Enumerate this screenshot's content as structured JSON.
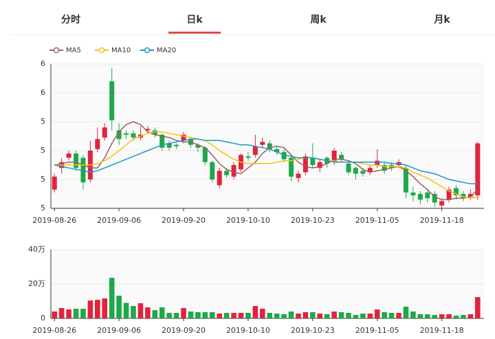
{
  "tabs": [
    "分时",
    "日k",
    "周k",
    "月k"
  ],
  "selected_tab": 1,
  "up_color": "#e2233e",
  "down_color": "#1fa84a",
  "chart_data": [
    {
      "type": "candlestick",
      "categories": [
        "2019-08-26",
        null,
        null,
        null,
        null,
        null,
        null,
        null,
        null,
        "2019-09-06",
        null,
        null,
        null,
        null,
        null,
        null,
        null,
        null,
        "2019-09-20",
        null,
        null,
        null,
        null,
        null,
        null,
        null,
        null,
        "2019-10-10",
        null,
        null,
        null,
        null,
        null,
        null,
        null,
        null,
        "2019-10-23",
        null,
        null,
        null,
        null,
        null,
        null,
        null,
        null,
        "2019-11-05",
        null,
        null,
        null,
        null,
        null,
        null,
        null,
        null,
        "2019-11-18",
        null,
        null,
        null,
        null,
        null
      ],
      "open": [
        4.93,
        5.08,
        5.15,
        5.18,
        5.15,
        5.0,
        5.21,
        5.29,
        5.68,
        5.34,
        5.32,
        5.32,
        5.29,
        5.34,
        5.34,
        5.31,
        5.25,
        5.24,
        5.27,
        5.28,
        5.24,
        5.22,
        5.12,
        4.96,
        5.06,
        5.02,
        5.07,
        5.16,
        5.17,
        5.24,
        5.25,
        5.21,
        5.19,
        5.15,
        5.01,
        5.05,
        5.15,
        5.08,
        5.15,
        5.12,
        5.17,
        5.11,
        5.08,
        5.06,
        5.05,
        5.1,
        5.1,
        5.1,
        5.1,
        5.08,
        4.91,
        4.9,
        4.91,
        4.9,
        4.82,
        4.86,
        4.94,
        4.9,
        4.88,
        4.89
      ],
      "high": [
        5.04,
        5.15,
        5.2,
        5.2,
        5.17,
        5.27,
        5.36,
        5.39,
        5.77,
        5.39,
        5.34,
        5.34,
        5.37,
        5.37,
        5.36,
        5.32,
        5.27,
        5.25,
        5.33,
        5.29,
        5.25,
        5.23,
        5.13,
        5.08,
        5.08,
        5.12,
        5.18,
        5.19,
        5.31,
        5.29,
        5.27,
        5.23,
        5.21,
        5.16,
        5.06,
        5.18,
        5.25,
        5.14,
        5.16,
        5.22,
        5.19,
        5.13,
        5.09,
        5.08,
        5.1,
        5.21,
        5.12,
        5.12,
        5.14,
        5.1,
        4.95,
        4.92,
        4.93,
        4.92,
        4.87,
        4.95,
        4.96,
        4.92,
        4.93,
        5.26
      ],
      "low": [
        4.91,
        5.04,
        5.13,
        5.06,
        4.93,
        4.98,
        5.19,
        5.27,
        5.34,
        5.24,
        5.28,
        5.27,
        5.27,
        5.32,
        5.29,
        5.2,
        5.2,
        5.21,
        5.25,
        5.22,
        5.19,
        5.1,
        4.98,
        4.94,
        5.01,
        5.0,
        5.05,
        5.13,
        5.15,
        5.22,
        5.19,
        5.17,
        5.12,
        4.99,
        4.98,
        5.03,
        5.08,
        5.05,
        5.08,
        5.1,
        5.12,
        5.03,
        5.0,
        5.02,
        5.03,
        5.08,
        5.04,
        5.06,
        5.08,
        4.87,
        4.85,
        4.83,
        4.84,
        4.81,
        4.8,
        4.84,
        4.86,
        4.85,
        4.86,
        4.86
      ],
      "close": [
        5.02,
        5.12,
        5.18,
        5.08,
        4.98,
        5.2,
        5.28,
        5.36,
        5.41,
        5.28,
        5.31,
        5.29,
        5.31,
        5.35,
        5.31,
        5.22,
        5.22,
        5.23,
        5.31,
        5.24,
        5.22,
        5.12,
        5.0,
        5.06,
        5.03,
        5.1,
        5.17,
        5.15,
        5.23,
        5.26,
        5.21,
        5.19,
        5.14,
        5.02,
        5.04,
        5.16,
        5.1,
        5.12,
        5.11,
        5.2,
        5.14,
        5.05,
        5.04,
        5.04,
        5.08,
        5.13,
        5.06,
        5.08,
        5.12,
        4.91,
        4.89,
        4.86,
        4.87,
        4.84,
        4.85,
        4.93,
        4.89,
        4.87,
        4.9,
        5.25
      ],
      "series": [
        {
          "name": "MA5",
          "color": "#9b5f62",
          "values": [
            5.1,
            5.11,
            5.12,
            5.12,
            5.1,
            5.08,
            5.08,
            5.15,
            5.25,
            5.33,
            5.38,
            5.4,
            5.38,
            5.33,
            5.31,
            5.3,
            5.29,
            5.27,
            5.26,
            5.26,
            5.24,
            5.22,
            5.17,
            5.11,
            5.07,
            5.05,
            5.04,
            5.08,
            5.12,
            5.18,
            5.22,
            5.23,
            5.22,
            5.17,
            5.12,
            5.09,
            5.08,
            5.09,
            5.11,
            5.14,
            5.14,
            5.13,
            5.11,
            5.07,
            5.05,
            5.06,
            5.07,
            5.08,
            5.09,
            5.06,
            5.02,
            4.97,
            4.93,
            4.88,
            4.86,
            4.86,
            4.87,
            4.87,
            4.88,
            4.93
          ]
        },
        {
          "name": "MA10",
          "color": "#f2c40f",
          "values": [
            5.1,
            5.1,
            5.1,
            5.1,
            5.1,
            5.1,
            5.11,
            5.13,
            5.16,
            5.2,
            5.24,
            5.28,
            5.3,
            5.32,
            5.33,
            5.33,
            5.32,
            5.31,
            5.3,
            5.29,
            5.28,
            5.27,
            5.24,
            5.2,
            5.17,
            5.14,
            5.12,
            5.11,
            5.11,
            5.11,
            5.11,
            5.12,
            5.13,
            5.13,
            5.14,
            5.15,
            5.15,
            5.14,
            5.13,
            5.13,
            5.12,
            5.12,
            5.12,
            5.11,
            5.1,
            5.1,
            5.09,
            5.09,
            5.09,
            5.08,
            5.05,
            5.03,
            5.01,
            4.98,
            4.95,
            4.92,
            4.9,
            4.88,
            4.87,
            4.88
          ]
        },
        {
          "name": "MA20",
          "color": "#1b96c8",
          "values": [
            5.1,
            5.09,
            5.08,
            5.07,
            5.06,
            5.05,
            5.06,
            5.08,
            5.1,
            5.12,
            5.14,
            5.16,
            5.18,
            5.2,
            5.22,
            5.24,
            5.25,
            5.26,
            5.27,
            5.28,
            5.28,
            5.27,
            5.27,
            5.27,
            5.26,
            5.25,
            5.24,
            5.24,
            5.23,
            5.22,
            5.21,
            5.19,
            5.17,
            5.16,
            5.15,
            5.15,
            5.15,
            5.14,
            5.13,
            5.12,
            5.12,
            5.12,
            5.12,
            5.12,
            5.12,
            5.12,
            5.12,
            5.11,
            5.11,
            5.1,
            5.08,
            5.06,
            5.05,
            5.04,
            5.02,
            5.0,
            4.99,
            4.98,
            4.97,
            4.97
          ]
        }
      ],
      "ylim": [
        4.8,
        5.8
      ],
      "yticks": [
        {
          "value": 4.8,
          "label": "5"
        },
        {
          "value": 5.0,
          "label": "5"
        },
        {
          "value": 5.2,
          "label": "5"
        },
        {
          "value": 5.4,
          "label": "5"
        },
        {
          "value": 5.6,
          "label": "6"
        },
        {
          "value": 5.8,
          "label": "6"
        }
      ],
      "grid": true
    },
    {
      "type": "bar",
      "categories": [
        "2019-08-26",
        null,
        null,
        null,
        null,
        null,
        null,
        null,
        null,
        "2019-09-06",
        null,
        null,
        null,
        null,
        null,
        null,
        null,
        null,
        "2019-09-20",
        null,
        null,
        null,
        null,
        null,
        null,
        null,
        null,
        "2019-10-10",
        null,
        null,
        null,
        null,
        null,
        null,
        null,
        null,
        "2019-10-23",
        null,
        null,
        null,
        null,
        null,
        null,
        null,
        null,
        "2019-11-05",
        null,
        null,
        null,
        null,
        null,
        null,
        null,
        null,
        "2019-11-18",
        null,
        null,
        null,
        null,
        null
      ],
      "values": [
        40000,
        60000,
        52000,
        56000,
        56000,
        104000,
        108000,
        116000,
        236000,
        132000,
        90000,
        72000,
        88000,
        64000,
        48000,
        64000,
        32000,
        32000,
        60000,
        40000,
        36000,
        36000,
        36000,
        28000,
        32000,
        32000,
        32000,
        32000,
        72000,
        56000,
        32000,
        28000,
        24000,
        40000,
        28000,
        36000,
        36000,
        28000,
        24000,
        40000,
        36000,
        32000,
        20000,
        28000,
        28000,
        52000,
        36000,
        32000,
        32000,
        68000,
        40000,
        24000,
        24000,
        20000,
        24000,
        24000,
        16000,
        20000,
        24000,
        124000
      ],
      "ylim": [
        0,
        400000
      ],
      "yticks": [
        0,
        {
          "value": 200000,
          "label": "20万"
        },
        {
          "value": 400000,
          "label": "40万"
        }
      ],
      "grid": true
    }
  ]
}
